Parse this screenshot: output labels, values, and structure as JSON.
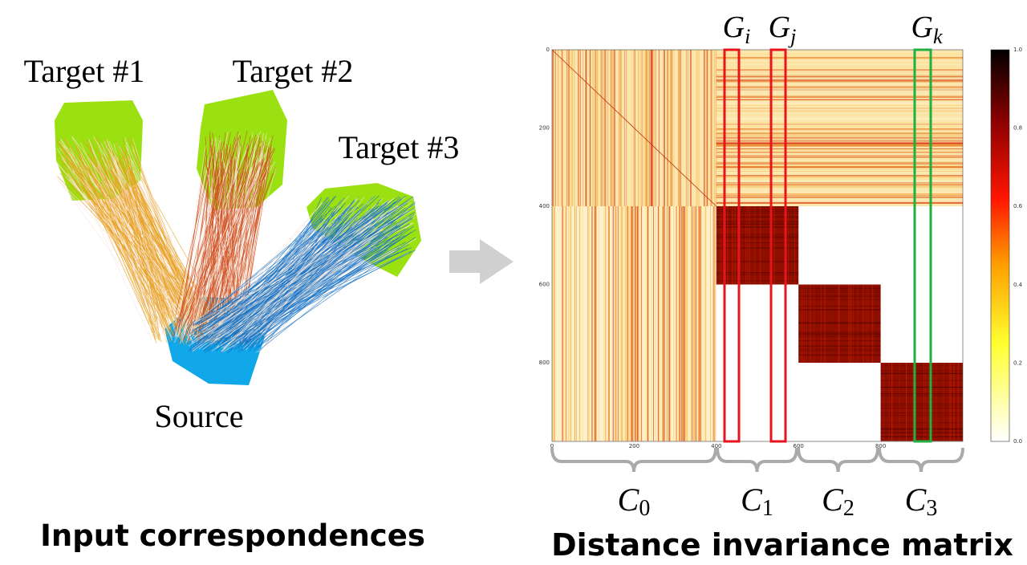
{
  "left": {
    "targets": [
      "Target #1",
      "Target #2",
      "Target #3"
    ],
    "source": "Source",
    "caption": "Input correspondences"
  },
  "right": {
    "groups": [
      {
        "base": "G",
        "sub": "i"
      },
      {
        "base": "G",
        "sub": "j"
      },
      {
        "base": "G",
        "sub": "k"
      }
    ],
    "clusters": [
      {
        "base": "C",
        "sub": "0"
      },
      {
        "base": "C",
        "sub": "1"
      },
      {
        "base": "C",
        "sub": "2"
      },
      {
        "base": "C",
        "sub": "3"
      }
    ],
    "x_ticks": [
      "0",
      "200",
      "400",
      "600",
      "800"
    ],
    "y_ticks": [
      "0",
      "200",
      "400",
      "600",
      "800"
    ],
    "colorbar_ticks": [
      "0.0",
      "0.2",
      "0.4",
      "0.6",
      "0.8",
      "1.0"
    ],
    "caption": "Distance invariance matrix"
  }
}
